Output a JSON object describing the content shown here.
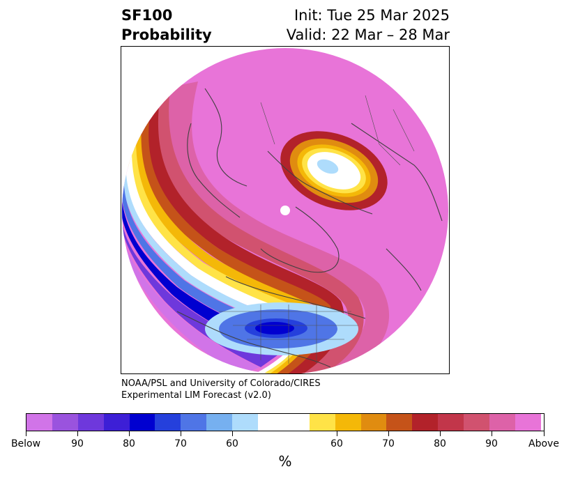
{
  "header": {
    "variable": "SF100",
    "subtitle": "Probability",
    "init": "Init: Tue 25 Mar 2025",
    "valid": "Valid: 22 Mar – 28 Mar"
  },
  "credit": {
    "line1": "NOAA/PSL and University of Colorado/CIRES",
    "line2": "Experimental LIM Forecast (v2.0)"
  },
  "colorbar": {
    "unit": "%",
    "colors": [
      "#d174e8",
      "#9a53de",
      "#6e38dc",
      "#3d1fd6",
      "#0000d0",
      "#2540dc",
      "#4f75e6",
      "#76b0f0",
      "#aedcfc",
      "#ffffff",
      "#ffe347",
      "#f4b808",
      "#e08c10",
      "#c55319",
      "#b2222a",
      "#c2364a",
      "#d1526f",
      "#dd62a8",
      "#e874d8"
    ],
    "labels": [
      "Below",
      "90",
      "80",
      "70",
      "60",
      "60",
      "70",
      "80",
      "90",
      "Above"
    ]
  },
  "map": {
    "projection": "north-polar-stereographic",
    "dominant_category": "Above",
    "colors": {
      "above": "#e874d8",
      "above90": "#dd62a8",
      "above80": "#d1526f",
      "above75": "#c2364a",
      "above70": "#b2222a",
      "above65": "#c55319",
      "above60": "#e08c10",
      "above55": "#f4b808",
      "above50": "#ffe347",
      "neutral": "#ffffff",
      "below50": "#aedcfc",
      "below55": "#76b0f0",
      "below60": "#4f75e6",
      "below65": "#2540dc",
      "below70": "#0000d0",
      "below80": "#3d1fd6",
      "below90": "#6e38dc",
      "below": "#d174e8"
    }
  }
}
